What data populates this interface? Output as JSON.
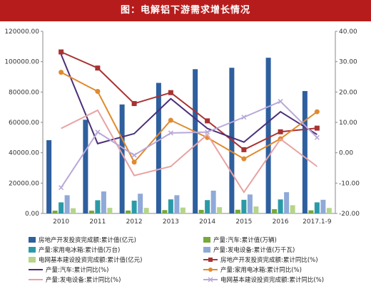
{
  "title": "图：电解铝下游需求增长情况",
  "chart_data": {
    "type": "bar+line",
    "categories": [
      "2010",
      "2011",
      "2012",
      "2013",
      "2014",
      "2015",
      "2016",
      "2017.1-9"
    ],
    "left_axis": {
      "min": 0,
      "max": 120000,
      "ticks": [
        "0.00",
        "20000.00",
        "40000.00",
        "60000.00",
        "80000.00",
        "100000.00",
        "120000.00"
      ]
    },
    "right_axis": {
      "min": -20,
      "max": 40,
      "ticks": [
        "-20.00",
        "-10.00",
        "0.00",
        "10.00",
        "20.00",
        "30.00",
        "40.00"
      ]
    },
    "bar_series": [
      {
        "name": "房地产开发投资完成额:累计值(亿元)",
        "color": "#2e5f9e",
        "values": [
          48260,
          61740,
          71800,
          86013,
          95036,
          95979,
          102581,
          80644
        ]
      },
      {
        "name": "产量:汽车:累计值(万辆)",
        "color": "#77a83a",
        "values": [
          1827,
          1842,
          1928,
          2212,
          2373,
          2450,
          2812,
          2036
        ]
      },
      {
        "name": "产量:家用电冰箱:累计值(万台)",
        "color": "#2b9aa8",
        "values": [
          7300,
          8700,
          8427,
          9261,
          8796,
          8993,
          9238,
          7300
        ]
      },
      {
        "name": "产量:发电设备:累计值(万千瓦)",
        "color": "#8fa9d8",
        "values": [
          12000,
          14500,
          13000,
          12000,
          15000,
          12500,
          14000,
          9000
        ]
      },
      {
        "name": "电网基本建设投资完成额:累计值(亿元)",
        "color": "#b5d58a",
        "values": [
          3448,
          3687,
          3661,
          3894,
          4118,
          4603,
          5426,
          3600
        ]
      }
    ],
    "line_series": [
      {
        "name": "房地产开发投资完成额:累计同比(%)",
        "color": "#a83232",
        "marker": "square",
        "values": [
          33.2,
          27.9,
          16.2,
          19.8,
          10.5,
          1.0,
          6.9,
          8.1
        ]
      },
      {
        "name": "产量:汽车:累计同比(%)",
        "color": "#4b2f7a",
        "marker": "none",
        "values": [
          32.4,
          3.0,
          6.3,
          17.8,
          8.0,
          3.5,
          13.5,
          6.0
        ]
      },
      {
        "name": "产量:家用电冰箱:累计同比(%)",
        "color": "#e08a2e",
        "marker": "circle",
        "values": [
          26.5,
          20.2,
          -3.1,
          10.7,
          5.0,
          -2.0,
          4.6,
          13.5
        ]
      },
      {
        "name": "产量:发电设备:累计同比(%)",
        "color": "#e8a3a3",
        "marker": "none",
        "values": [
          8.0,
          14.0,
          -7.5,
          -4.5,
          6.0,
          -13.0,
          4.5,
          -4.5
        ]
      },
      {
        "name": "电网基本建设投资完成额:累计同比(%)",
        "color": "#b8a8d8",
        "marker": "x",
        "values": [
          -11.5,
          6.8,
          -0.8,
          6.5,
          6.8,
          11.7,
          16.9,
          5.0
        ]
      }
    ]
  },
  "legend": [
    {
      "label": "房地产开发投资完成额:累计值(亿元)",
      "kind": "bar",
      "color": "#2e5f9e"
    },
    {
      "label": "产量:汽车:累计值(万辆)",
      "kind": "bar",
      "color": "#77a83a"
    },
    {
      "label": "产量:家用电冰箱:累计值(万台)",
      "kind": "bar",
      "color": "#2b9aa8"
    },
    {
      "label": "产量:发电设备:累计值(万千瓦)",
      "kind": "bar",
      "color": "#8fa9d8"
    },
    {
      "label": "电网基本建设投资完成额:累计值(亿元)",
      "kind": "bar",
      "color": "#b5d58a"
    },
    {
      "label": "房地产开发投资完成额:累计同比(%)",
      "kind": "line",
      "color": "#a83232",
      "marker": "square"
    },
    {
      "label": "产量:汽车:累计同比(%)",
      "kind": "line",
      "color": "#4b2f7a",
      "marker": "none"
    },
    {
      "label": "产量:家用电冰箱:累计同比(%)",
      "kind": "line",
      "color": "#e08a2e",
      "marker": "circle"
    },
    {
      "label": "产量:发电设备:累计同比(%)",
      "kind": "line",
      "color": "#e8a3a3",
      "marker": "none"
    },
    {
      "label": "电网基本建设投资完成额:累计同比(%)",
      "kind": "line",
      "color": "#b8a8d8",
      "marker": "x"
    }
  ]
}
